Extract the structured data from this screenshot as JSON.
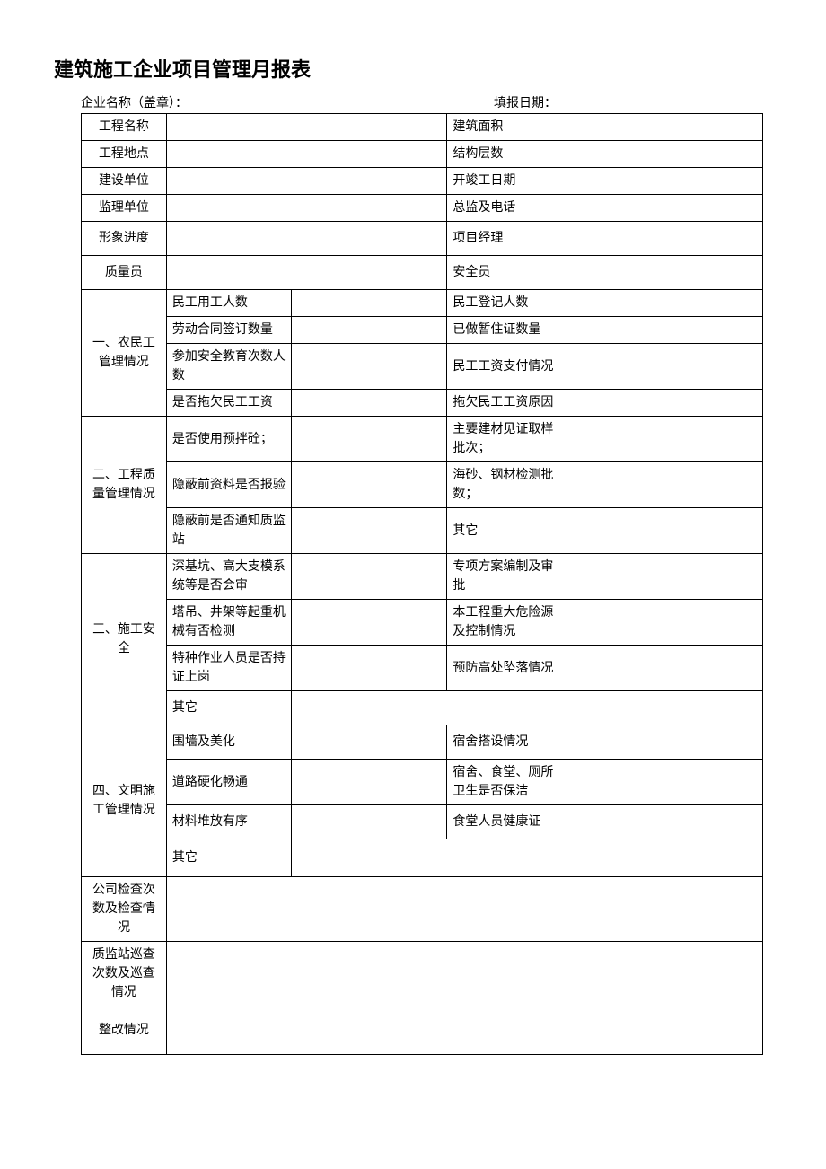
{
  "title": "建筑施工企业项目管理月报表",
  "header": {
    "company_label": "企业名称（盖章）：",
    "date_label": "填报日期："
  },
  "rows": {
    "project_name": "工程名称",
    "building_area": "建筑面积",
    "project_location": "工程地点",
    "structure_floors": "结构层数",
    "construction_unit": "建设单位",
    "start_complete_date": "开竣工日期",
    "supervision_unit": "监理单位",
    "supervisor_phone": "总监及电话",
    "image_progress": "形象进度",
    "project_manager": "项目经理",
    "quality_officer": "质量员",
    "safety_officer": "安全员"
  },
  "section1": {
    "title": "一、农民工管理情况",
    "r1a": "民工用工人数",
    "r1b": "民工登记人数",
    "r2a": "劳动合同签订数量",
    "r2b": "已做暂住证数量",
    "r3a": "参加安全教育次数人数",
    "r3b": "民工工资支付情况",
    "r4a": "是否拖欠民工工资",
    "r4b": "拖欠民工工资原因"
  },
  "section2": {
    "title": "二、工程质量管理情况",
    "r1a": "是否使用预拌砼；",
    "r1b": "主要建材见证取样批次；",
    "r2a": "隐蔽前资料是否报验",
    "r2b": "海砂、钢材检测批数；",
    "r3a": "隐蔽前是否通知质监站",
    "r3b": "其它"
  },
  "section3": {
    "title": "三、施工安全",
    "r1a": "深基坑、高大支模系统等是否会审",
    "r1b": "专项方案编制及审批",
    "r2a": "塔吊、井架等起重机械有否检测",
    "r2b": "本工程重大危险源及控制情况",
    "r3a": "特种作业人员是否持证上岗",
    "r3b": "预防高处坠落情况",
    "r4a": "其它"
  },
  "section4": {
    "title": "四、文明施工管理情况",
    "r1a": "围墙及美化",
    "r1b": "宿舍搭设情况",
    "r2a": "道路硬化畅通",
    "r2b": "宿舍、食堂、厕所卫生是否保洁",
    "r3a": "材料堆放有序",
    "r3b": "食堂人员健康证",
    "r4a": "其它"
  },
  "bottom": {
    "company_check": "公司检查次数及检查情况",
    "station_check": "质监站巡查次数及巡查情况",
    "rectification": "整改情况"
  }
}
